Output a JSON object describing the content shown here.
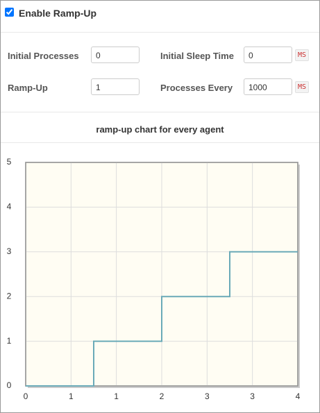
{
  "header": {
    "label": "Enable Ramp-Up",
    "checked": true
  },
  "fields": [
    {
      "label": "Initial Processes",
      "value": "0"
    },
    {
      "label": "Initial Sleep Time",
      "value": "0",
      "unit": "MS"
    },
    {
      "label": "Ramp-Up",
      "value": "1"
    },
    {
      "label": "Processes Every",
      "value": "1000",
      "unit": "MS"
    }
  ],
  "chart_data": {
    "type": "line",
    "title": "ramp-up chart for every agent",
    "x": [
      0,
      1,
      1,
      2,
      2,
      3,
      3,
      4
    ],
    "series": [
      {
        "color": "#6aaab8",
        "values": [
          0,
          0,
          1,
          1,
          2,
          2,
          3,
          3
        ]
      }
    ],
    "xlim": [
      0,
      4
    ],
    "xticks": [
      0,
      {
        "value": 0.667,
        "label": "1"
      },
      {
        "value": 1.333,
        "label": "1"
      },
      2,
      {
        "value": 2.667,
        "label": "3"
      },
      {
        "value": 3.333,
        "label": "3"
      },
      4
    ],
    "ylim": [
      0,
      5
    ],
    "yticks": [
      0,
      1,
      2,
      3,
      4,
      5
    ],
    "grid": true
  }
}
